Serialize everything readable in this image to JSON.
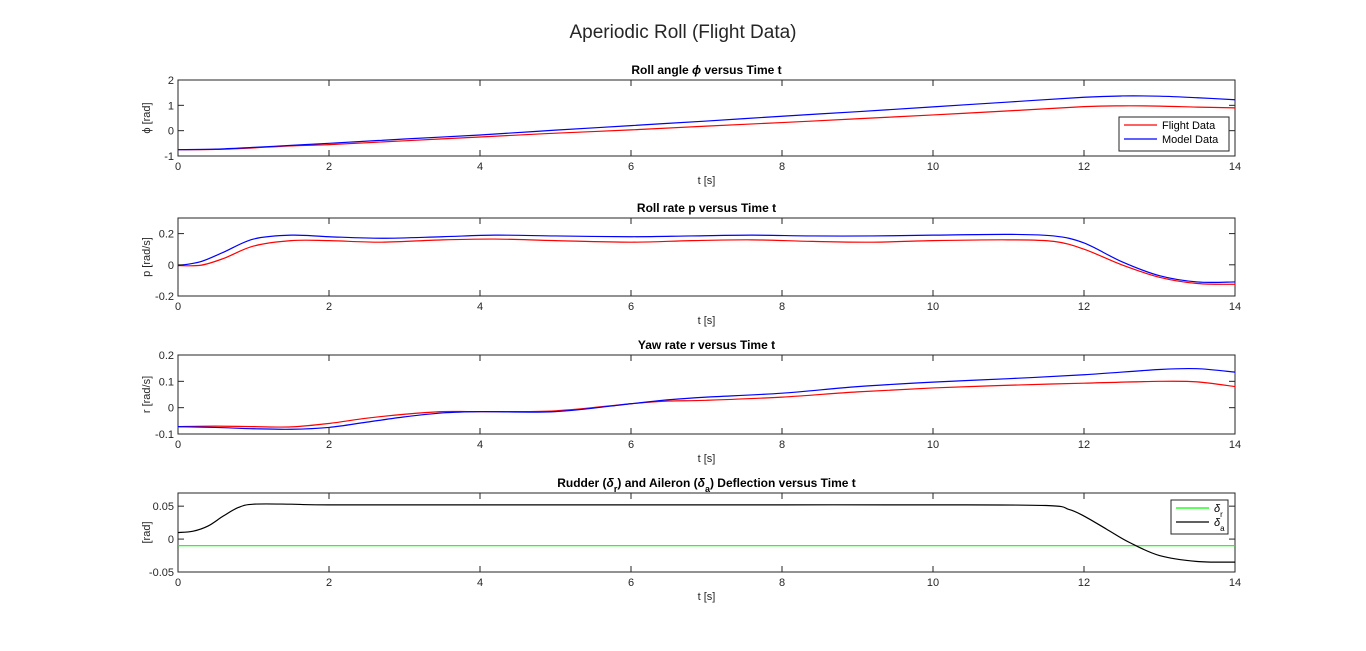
{
  "figure": {
    "title": "Aperiodic Roll (Flight Data)"
  },
  "chart_data": [
    {
      "type": "line",
      "title": "Roll angle ϕ versus Time t",
      "title_parts": [
        {
          "text": "Roll angle "
        },
        {
          "text": "ϕ",
          "style": "italic"
        },
        {
          "text": " versus Time t"
        }
      ],
      "xlabel": "t [s]",
      "ylabel": "ϕ [rad]",
      "xlim": [
        0,
        14
      ],
      "ylim": [
        -1,
        2
      ],
      "xticks": [
        0,
        2,
        4,
        6,
        8,
        10,
        12,
        14
      ],
      "yticks": [
        -1,
        0,
        1,
        2
      ],
      "grid": false,
      "legend": "lower-right",
      "series": [
        {
          "name": "Flight Data",
          "color": "#ff0000",
          "x": [
            0,
            0.5,
            1,
            1.5,
            2,
            3,
            4,
            5,
            6,
            7,
            8,
            9,
            10,
            11,
            12,
            12.5,
            13,
            13.5,
            14
          ],
          "y": [
            -0.75,
            -0.74,
            -0.68,
            -0.6,
            -0.55,
            -0.4,
            -0.25,
            -0.1,
            0.03,
            0.18,
            0.32,
            0.47,
            0.62,
            0.78,
            0.95,
            0.98,
            0.97,
            0.93,
            0.9
          ]
        },
        {
          "name": "Model Data",
          "color": "#0000ff",
          "x": [
            0,
            0.5,
            1,
            1.5,
            2,
            3,
            4,
            5,
            6,
            7,
            8,
            9,
            10,
            11,
            12,
            12.5,
            13,
            13.5,
            14
          ],
          "y": [
            -0.75,
            -0.73,
            -0.66,
            -0.58,
            -0.5,
            -0.33,
            -0.17,
            0.02,
            0.2,
            0.38,
            0.57,
            0.75,
            0.94,
            1.13,
            1.32,
            1.37,
            1.36,
            1.3,
            1.22
          ]
        }
      ]
    },
    {
      "type": "line",
      "title": "Roll rate p versus Time t",
      "title_parts": [
        {
          "text": "Roll rate p versus Time t"
        }
      ],
      "xlabel": "t [s]",
      "ylabel": "p  [rad/s]",
      "xlim": [
        0,
        14
      ],
      "ylim": [
        -0.2,
        0.3
      ],
      "xticks": [
        0,
        2,
        4,
        6,
        8,
        10,
        12,
        14
      ],
      "yticks": [
        -0.2,
        0,
        0.2
      ],
      "grid": false,
      "series": [
        {
          "name": "Flight Data",
          "color": "#ff0000",
          "x": [
            0,
            0.3,
            0.6,
            1,
            1.5,
            2,
            2.7,
            3.5,
            4.2,
            5,
            6,
            6.8,
            7.6,
            8.4,
            9.2,
            10,
            11,
            11.6,
            12,
            12.5,
            13,
            13.5,
            14
          ],
          "y": [
            -0.005,
            -0.003,
            0.04,
            0.12,
            0.155,
            0.155,
            0.145,
            0.16,
            0.165,
            0.155,
            0.145,
            0.155,
            0.16,
            0.15,
            0.145,
            0.155,
            0.16,
            0.15,
            0.1,
            0.0,
            -0.08,
            -0.12,
            -0.125
          ]
        },
        {
          "name": "Model Data",
          "color": "#0000ff",
          "x": [
            0,
            0.3,
            0.6,
            1,
            1.5,
            2,
            2.7,
            3.5,
            4.2,
            5,
            6,
            6.8,
            7.6,
            8.4,
            9.2,
            10,
            11,
            11.6,
            12,
            12.5,
            13,
            13.5,
            14
          ],
          "y": [
            -0.005,
            0.02,
            0.08,
            0.165,
            0.19,
            0.18,
            0.17,
            0.18,
            0.19,
            0.185,
            0.18,
            0.185,
            0.19,
            0.185,
            0.185,
            0.19,
            0.195,
            0.185,
            0.14,
            0.02,
            -0.07,
            -0.11,
            -0.11
          ]
        }
      ]
    },
    {
      "type": "line",
      "title": "Yaw rate r versus Time t",
      "title_parts": [
        {
          "text": "Yaw rate r versus Time t"
        }
      ],
      "xlabel": "t [s]",
      "ylabel": "r  [rad/s]",
      "xlim": [
        0,
        14
      ],
      "ylim": [
        -0.1,
        0.2
      ],
      "xticks": [
        0,
        2,
        4,
        6,
        8,
        10,
        12,
        14
      ],
      "yticks": [
        -0.1,
        0,
        0.1,
        0.2
      ],
      "grid": false,
      "series": [
        {
          "name": "Flight Data",
          "color": "#ff0000",
          "x": [
            0,
            0.5,
            1,
            1.5,
            2,
            2.5,
            3,
            3.5,
            4,
            5,
            6,
            6.5,
            7,
            8,
            9,
            10,
            11,
            12,
            13,
            13.5,
            14
          ],
          "y": [
            -0.072,
            -0.07,
            -0.072,
            -0.073,
            -0.06,
            -0.04,
            -0.025,
            -0.015,
            -0.015,
            -0.012,
            0.015,
            0.025,
            0.028,
            0.04,
            0.06,
            0.075,
            0.085,
            0.093,
            0.1,
            0.098,
            0.08
          ]
        },
        {
          "name": "Model Data",
          "color": "#0000ff",
          "x": [
            0,
            0.5,
            1,
            1.5,
            2,
            2.5,
            3,
            3.5,
            4,
            5,
            6,
            6.5,
            7,
            8,
            9,
            10,
            11,
            12,
            13,
            13.5,
            14
          ],
          "y": [
            -0.072,
            -0.075,
            -0.08,
            -0.082,
            -0.075,
            -0.055,
            -0.035,
            -0.02,
            -0.015,
            -0.015,
            0.015,
            0.03,
            0.04,
            0.055,
            0.08,
            0.097,
            0.11,
            0.125,
            0.145,
            0.148,
            0.135
          ]
        }
      ]
    },
    {
      "type": "line",
      "title": "Rudder (δr) and Aileron (δa) Deflection versus Time t",
      "title_parts": [
        {
          "text": "Rudder ("
        },
        {
          "text": "δ",
          "style": "italic"
        },
        {
          "text": "r",
          "style": "sub"
        },
        {
          "text": ") and Aileron ("
        },
        {
          "text": "δ",
          "style": "italic"
        },
        {
          "text": "a",
          "style": "sub"
        },
        {
          "text": ") Deflection versus Time t"
        }
      ],
      "xlabel": "t [s]",
      "ylabel": "[rad]",
      "xlim": [
        0,
        14
      ],
      "ylim": [
        -0.05,
        0.07
      ],
      "xticks": [
        0,
        2,
        4,
        6,
        8,
        10,
        12,
        14
      ],
      "yticks": [
        -0.05,
        0,
        0.05
      ],
      "grid": false,
      "legend": "upper-right",
      "series": [
        {
          "name": "δr",
          "legend_base": "δ",
          "legend_sub": "r",
          "color": "#00ff00",
          "x": [
            0,
            14
          ],
          "y": [
            -0.01,
            -0.01
          ]
        },
        {
          "name": "δa",
          "legend_base": "δ",
          "legend_sub": "a",
          "color": "#000000",
          "x": [
            0,
            0.2,
            0.4,
            0.6,
            0.8,
            1,
            1.5,
            2,
            4,
            6,
            8,
            10,
            11.5,
            11.8,
            12,
            12.3,
            12.6,
            13,
            13.5,
            14
          ],
          "y": [
            0.01,
            0.012,
            0.02,
            0.035,
            0.048,
            0.053,
            0.053,
            0.052,
            0.052,
            0.052,
            0.052,
            0.052,
            0.051,
            0.045,
            0.035,
            0.015,
            -0.005,
            -0.025,
            -0.034,
            -0.035
          ]
        }
      ]
    }
  ]
}
